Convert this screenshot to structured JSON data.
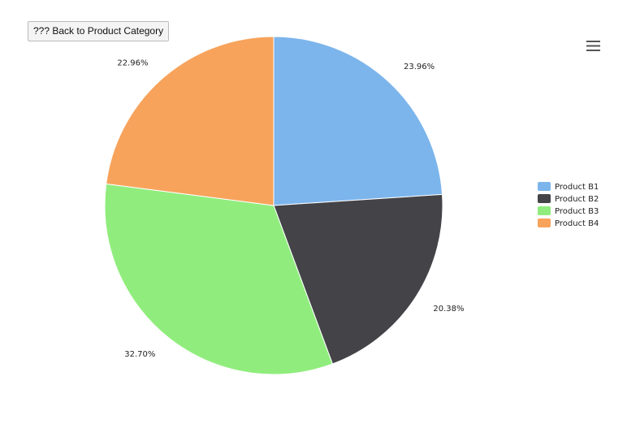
{
  "chart_data": {
    "type": "pie",
    "back_button": "??? Back to Product Category",
    "categories": [
      "Product B1",
      "Product B2",
      "Product B3",
      "Product B4"
    ],
    "values": [
      23.96,
      20.38,
      32.7,
      22.96
    ],
    "value_labels": [
      "23.96%",
      "20.38%",
      "32.70%",
      "22.96%"
    ],
    "colors": [
      "#7cb5ec",
      "#434348",
      "#90ed7d",
      "#f7a35c"
    ],
    "legend": "right"
  }
}
